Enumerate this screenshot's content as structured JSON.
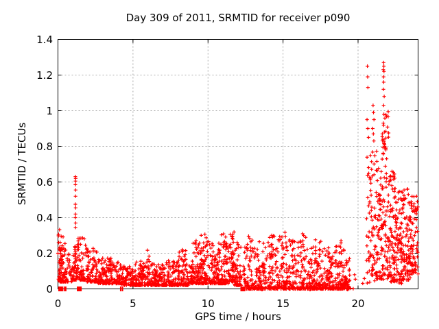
{
  "chart_data": {
    "type": "scatter",
    "title": "Day 309 of 2011, SRMTID for receiver p090",
    "xlabel": "GPS time / hours",
    "ylabel": "SRMTID / TECUs",
    "xlim": [
      0,
      24
    ],
    "ylim": [
      0,
      1.4
    ],
    "xticks": {
      "values": [
        0,
        5,
        10,
        15,
        20
      ],
      "labels": [
        "0",
        "5",
        "10",
        "15",
        "20"
      ]
    },
    "yticks": {
      "values": [
        0,
        0.2,
        0.4,
        0.6,
        0.8,
        1.0,
        1.2,
        1.4
      ],
      "labels": [
        "0",
        "0.2",
        "0.4",
        "0.6",
        "0.8",
        "1",
        "1.2",
        "1.4"
      ]
    },
    "grid": {
      "on": true,
      "color": "#a8a8a8",
      "dash": [
        2,
        3
      ]
    },
    "legend": "none",
    "marker": {
      "shape": "plus",
      "color": "#ff0000",
      "size": 5.2,
      "stroke": 1.2
    },
    "seed": 309,
    "clusters_format": [
      "x_start",
      "x_end",
      "n_points",
      "y_min",
      "y_top",
      "skew_toward_min"
    ],
    "clusters": [
      [
        0.03,
        0.25,
        45,
        0.04,
        0.34,
        2.0
      ],
      [
        0.25,
        0.55,
        45,
        0.04,
        0.3,
        2.4
      ],
      [
        0.55,
        0.95,
        30,
        0.04,
        0.2,
        2.2
      ],
      [
        0.95,
        1.12,
        20,
        0.05,
        0.26,
        2.0
      ],
      [
        1.12,
        1.28,
        22,
        0.05,
        0.34,
        1.5
      ],
      [
        1.28,
        1.85,
        65,
        0.05,
        0.3,
        2.6
      ],
      [
        1.85,
        2.6,
        85,
        0.04,
        0.24,
        2.6
      ],
      [
        2.6,
        3.6,
        110,
        0.03,
        0.18,
        2.4
      ],
      [
        3.6,
        4.25,
        70,
        0.03,
        0.15,
        2.4
      ],
      [
        4.25,
        5.1,
        85,
        0.02,
        0.14,
        2.2
      ],
      [
        5.1,
        5.9,
        90,
        0.02,
        0.16,
        2.4
      ],
      [
        5.9,
        6.35,
        55,
        0.02,
        0.22,
        2.6
      ],
      [
        6.35,
        7.1,
        85,
        0.02,
        0.14,
        2.2
      ],
      [
        7.1,
        7.9,
        90,
        0.02,
        0.17,
        2.4
      ],
      [
        7.9,
        8.7,
        95,
        0.02,
        0.22,
        2.6
      ],
      [
        8.7,
        9.45,
        95,
        0.03,
        0.28,
        2.6
      ],
      [
        9.45,
        10.15,
        95,
        0.03,
        0.31,
        2.6
      ],
      [
        10.15,
        10.85,
        95,
        0.03,
        0.28,
        2.6
      ],
      [
        10.85,
        11.35,
        70,
        0.03,
        0.31,
        2.6
      ],
      [
        11.35,
        11.75,
        60,
        0.04,
        0.34,
        2.4
      ],
      [
        11.75,
        12.25,
        60,
        0.02,
        0.26,
        2.6
      ],
      [
        12.3,
        13.2,
        95,
        0.0,
        0.3,
        2.8
      ],
      [
        13.2,
        14.0,
        90,
        0.0,
        0.29,
        2.8
      ],
      [
        14.0,
        14.8,
        90,
        0.0,
        0.31,
        2.8
      ],
      [
        14.8,
        15.5,
        80,
        0.0,
        0.33,
        2.8
      ],
      [
        15.5,
        16.2,
        75,
        0.0,
        0.28,
        2.8
      ],
      [
        16.2,
        17.0,
        90,
        0.0,
        0.31,
        2.8
      ],
      [
        17.0,
        17.8,
        95,
        0.0,
        0.28,
        2.8
      ],
      [
        17.8,
        18.5,
        90,
        0.0,
        0.26,
        2.8
      ],
      [
        18.5,
        19.1,
        80,
        0.0,
        0.3,
        2.8
      ],
      [
        19.1,
        19.45,
        45,
        0.0,
        0.25,
        2.8
      ],
      [
        19.5,
        20.45,
        6,
        0.0,
        0.08,
        1.5
      ],
      [
        20.55,
        20.85,
        30,
        0.03,
        0.75,
        1.3
      ],
      [
        20.85,
        21.25,
        55,
        0.04,
        0.8,
        1.5
      ],
      [
        21.25,
        21.6,
        55,
        0.05,
        0.72,
        1.5
      ],
      [
        21.6,
        22.05,
        85,
        0.05,
        1.0,
        1.6
      ],
      [
        22.05,
        22.5,
        80,
        0.04,
        0.66,
        1.5
      ],
      [
        22.5,
        23.0,
        85,
        0.03,
        0.56,
        1.6
      ],
      [
        23.0,
        23.5,
        80,
        0.05,
        0.56,
        1.7
      ],
      [
        23.5,
        24.0,
        75,
        0.08,
        0.52,
        1.5
      ]
    ],
    "outliers": [
      [
        0.0,
        0.2
      ],
      [
        0.04,
        0.26
      ],
      [
        1.16,
        0.63
      ],
      [
        1.18,
        0.62
      ],
      [
        1.17,
        0.605
      ],
      [
        1.16,
        0.585
      ],
      [
        1.18,
        0.555
      ],
      [
        1.17,
        0.52
      ],
      [
        1.16,
        0.475
      ],
      [
        1.18,
        0.455
      ],
      [
        1.17,
        0.42
      ],
      [
        1.16,
        0.4
      ],
      [
        1.18,
        0.37
      ],
      [
        1.17,
        0.345
      ],
      [
        20.62,
        1.25
      ],
      [
        20.64,
        1.19
      ],
      [
        20.66,
        1.13
      ],
      [
        20.6,
        0.95
      ],
      [
        20.65,
        0.9
      ],
      [
        20.7,
        0.85
      ],
      [
        21.0,
        1.03
      ],
      [
        21.03,
        0.99
      ],
      [
        21.06,
        0.95
      ],
      [
        20.98,
        0.9
      ],
      [
        21.02,
        0.87
      ],
      [
        21.05,
        0.83
      ],
      [
        21.7,
        1.27
      ],
      [
        21.72,
        1.25
      ],
      [
        21.68,
        1.23
      ],
      [
        21.73,
        1.22
      ],
      [
        21.7,
        1.19
      ],
      [
        21.71,
        1.16
      ],
      [
        21.69,
        1.12
      ],
      [
        21.74,
        1.08
      ],
      [
        21.7,
        1.03
      ],
      [
        21.72,
        0.98
      ],
      [
        21.68,
        0.93
      ],
      [
        21.75,
        0.88
      ],
      [
        21.66,
        0.84
      ],
      [
        21.78,
        0.8
      ],
      [
        21.62,
        0.87
      ],
      [
        21.85,
        0.78
      ],
      [
        21.9,
        0.73
      ],
      [
        22.12,
        0.63
      ],
      [
        22.18,
        0.61
      ],
      [
        22.25,
        0.58
      ],
      [
        22.3,
        0.56
      ],
      [
        23.3,
        0.56
      ],
      [
        23.35,
        0.53
      ],
      [
        23.9,
        0.52
      ],
      [
        23.95,
        0.49
      ],
      [
        23.98,
        0.46
      ]
    ],
    "zero_axis_clusters": [
      {
        "x": 0.18,
        "w": 7
      },
      {
        "x": 0.42,
        "w": 2
      },
      {
        "x": 0.52,
        "w": 2
      },
      {
        "x": 1.42,
        "w": 7
      },
      {
        "x": 4.18,
        "w": 2
      },
      {
        "x": 4.3,
        "w": 2
      },
      {
        "x": 12.32,
        "w": 7
      },
      {
        "x": 13.6,
        "w": 2
      },
      {
        "x": 16.8,
        "w": 2
      },
      {
        "x": 19.3,
        "w": 2
      }
    ]
  }
}
